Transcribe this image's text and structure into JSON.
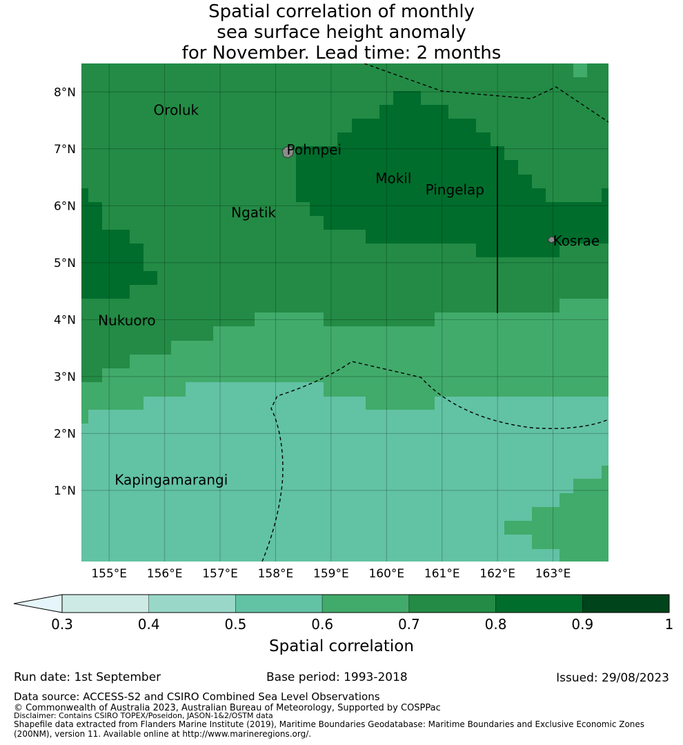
{
  "title": {
    "line1": "Spatial correlation of monthly",
    "line2": "sea surface height anomaly",
    "line3": "for November. Lead time: 2 months"
  },
  "map": {
    "lon_range": [
      154.5,
      164.0
    ],
    "lat_range": [
      -0.25,
      8.5
    ],
    "lon_ticks": [
      {
        "value": 155,
        "label": "155°E"
      },
      {
        "value": 156,
        "label": "156°E"
      },
      {
        "value": 157,
        "label": "157°E"
      },
      {
        "value": 158,
        "label": "158°E"
      },
      {
        "value": 159,
        "label": "159°E"
      },
      {
        "value": 160,
        "label": "160°E"
      },
      {
        "value": 161,
        "label": "161°E"
      },
      {
        "value": 162,
        "label": "162°E"
      },
      {
        "value": 163,
        "label": "163°E"
      }
    ],
    "lat_ticks": [
      {
        "value": 8,
        "label": "8°N"
      },
      {
        "value": 7,
        "label": "7°N"
      },
      {
        "value": 6,
        "label": "6°N"
      },
      {
        "value": 5,
        "label": "5°N"
      },
      {
        "value": 4,
        "label": "4°N"
      },
      {
        "value": 3,
        "label": "3°N"
      },
      {
        "value": 2,
        "label": "2°N"
      },
      {
        "value": 1,
        "label": "1°N"
      }
    ],
    "places": [
      {
        "name": "Oroluk",
        "lon": 155.8,
        "lat": 7.6
      },
      {
        "name": "Pohnpei",
        "lon": 158.2,
        "lat": 6.9
      },
      {
        "name": "Mokil",
        "lon": 159.8,
        "lat": 6.4
      },
      {
        "name": "Pingelap",
        "lon": 160.7,
        "lat": 6.2
      },
      {
        "name": "Ngatik",
        "lon": 157.2,
        "lat": 5.8
      },
      {
        "name": "Kosrae",
        "lon": 163.0,
        "lat": 5.3
      },
      {
        "name": "Nukuoro",
        "lon": 154.8,
        "lat": 3.9
      },
      {
        "name": "Kapingamarangi",
        "lon": 155.1,
        "lat": 1.1
      }
    ]
  },
  "colorbar": {
    "label": "Spatial correlation",
    "ticks": [
      "0.3",
      "0.4",
      "0.5",
      "0.6",
      "0.7",
      "0.8",
      "0.9",
      "1"
    ],
    "colors": [
      "#cdebe4",
      "#99d8c9",
      "#62c2a4",
      "#41ab6b",
      "#238b45",
      "#006d2c",
      "#00441b"
    ],
    "under_color": "#e5f5f9"
  },
  "legend_colors": {
    "c05": "#62c2a4",
    "c06": "#41ab6b",
    "c07": "#238b45",
    "c08": "#006d2c"
  },
  "footer": {
    "run_date": "Run date: 1st September",
    "base_period": "Base period: 1993-2018",
    "issued": "Issued: 29/08/2023",
    "data_source": "Data source: ACCESS-S2 and CSIRO Combined Sea Level Observations",
    "copyright": "© Commonwealth of Australia 2023, Australian Bureau of Meteorology, Supported by COSPPac",
    "disclaimer": "Disclaimer: Contains CSIRO TOPEX/Poseidon, JASON-1&2/OSTM data",
    "shapefile1": "Shapefile data extracted from Flanders Marine Institute (2019), Maritime Boundaries Geodatabase: Maritime Boundaries and Exclusive Economic Zones",
    "shapefile2": "(200NM), version 11. Available online at http://www.marineregions.org/."
  }
}
